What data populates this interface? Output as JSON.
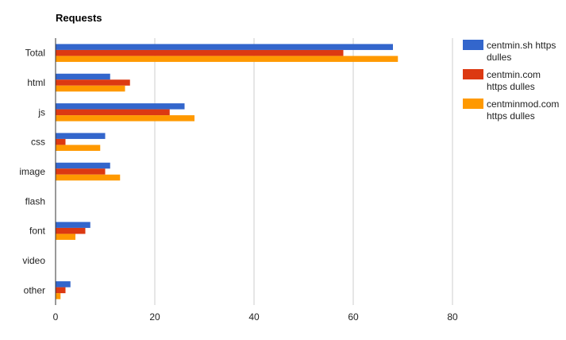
{
  "chart_data": {
    "type": "bar",
    "orientation": "horizontal",
    "title": "Requests",
    "xlabel": "",
    "ylabel": "",
    "categories": [
      "Total",
      "html",
      "js",
      "css",
      "image",
      "flash",
      "font",
      "video",
      "other"
    ],
    "series": [
      {
        "name": "centmin.sh https dulles",
        "legend_lines": [
          "centmin.sh https",
          "dulles"
        ],
        "color": "#3366cc",
        "values": [
          68,
          11,
          26,
          10,
          11,
          0,
          7,
          0,
          3
        ]
      },
      {
        "name": "centmin.com https dulles",
        "legend_lines": [
          "centmin.com",
          "https dulles"
        ],
        "color": "#dc3912",
        "values": [
          58,
          15,
          23,
          2,
          10,
          0,
          6,
          0,
          2
        ]
      },
      {
        "name": "centminmod.com https dulles",
        "legend_lines": [
          "centminmod.com",
          "https dulles"
        ],
        "color": "#ff9900",
        "values": [
          69,
          14,
          28,
          9,
          13,
          0,
          4,
          0,
          1
        ]
      }
    ],
    "xlim": [
      0,
      80
    ],
    "xticks": [
      "0",
      "20",
      "40",
      "60",
      "80"
    ],
    "grid": true,
    "legend": "right"
  }
}
